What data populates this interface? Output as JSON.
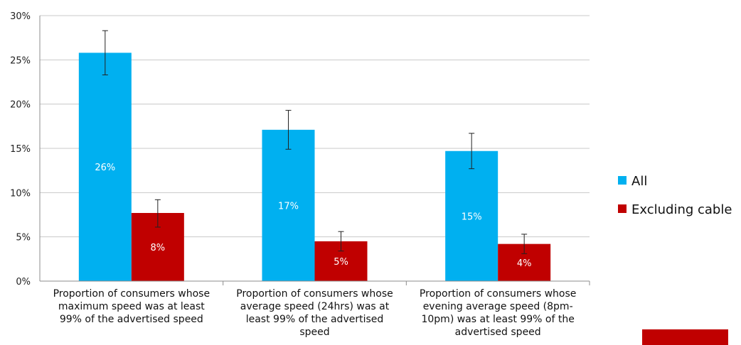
{
  "chart_data": {
    "type": "bar",
    "title": "",
    "xlabel": "",
    "ylabel": "",
    "ylim": [
      0,
      30
    ],
    "yticks": [
      "0%",
      "5%",
      "10%",
      "15%",
      "20%",
      "25%",
      "30%"
    ],
    "grid": true,
    "legend_position": "right",
    "categories": [
      [
        "Proportion of consumers whose",
        "maximum speed was at least",
        "99% of the advertised speed"
      ],
      [
        "Proportion of consumers whose",
        "average speed (24hrs) was at",
        "least 99% of the advertised",
        "speed"
      ],
      [
        "Proportion of consumers whose",
        "evening average speed (8pm-",
        "10pm) was at least 99% of the",
        "advertised speed"
      ]
    ],
    "series": [
      {
        "name": "All",
        "color": "#00B0F0",
        "values": [
          25.8,
          17.1,
          14.7
        ],
        "labels": [
          "26%",
          "17%",
          "15%"
        ],
        "error_low": [
          23.3,
          14.9,
          12.7
        ],
        "error_high": [
          28.3,
          19.3,
          16.7
        ]
      },
      {
        "name": "Excluding cable",
        "color": "#C00000",
        "values": [
          7.7,
          4.5,
          4.2
        ],
        "labels": [
          "8%",
          "5%",
          "4%"
        ],
        "error_low": [
          6.1,
          3.4,
          3.1
        ],
        "error_high": [
          9.2,
          5.6,
          5.3
        ]
      }
    ]
  },
  "decor": {
    "accent_color": "#C00000"
  }
}
